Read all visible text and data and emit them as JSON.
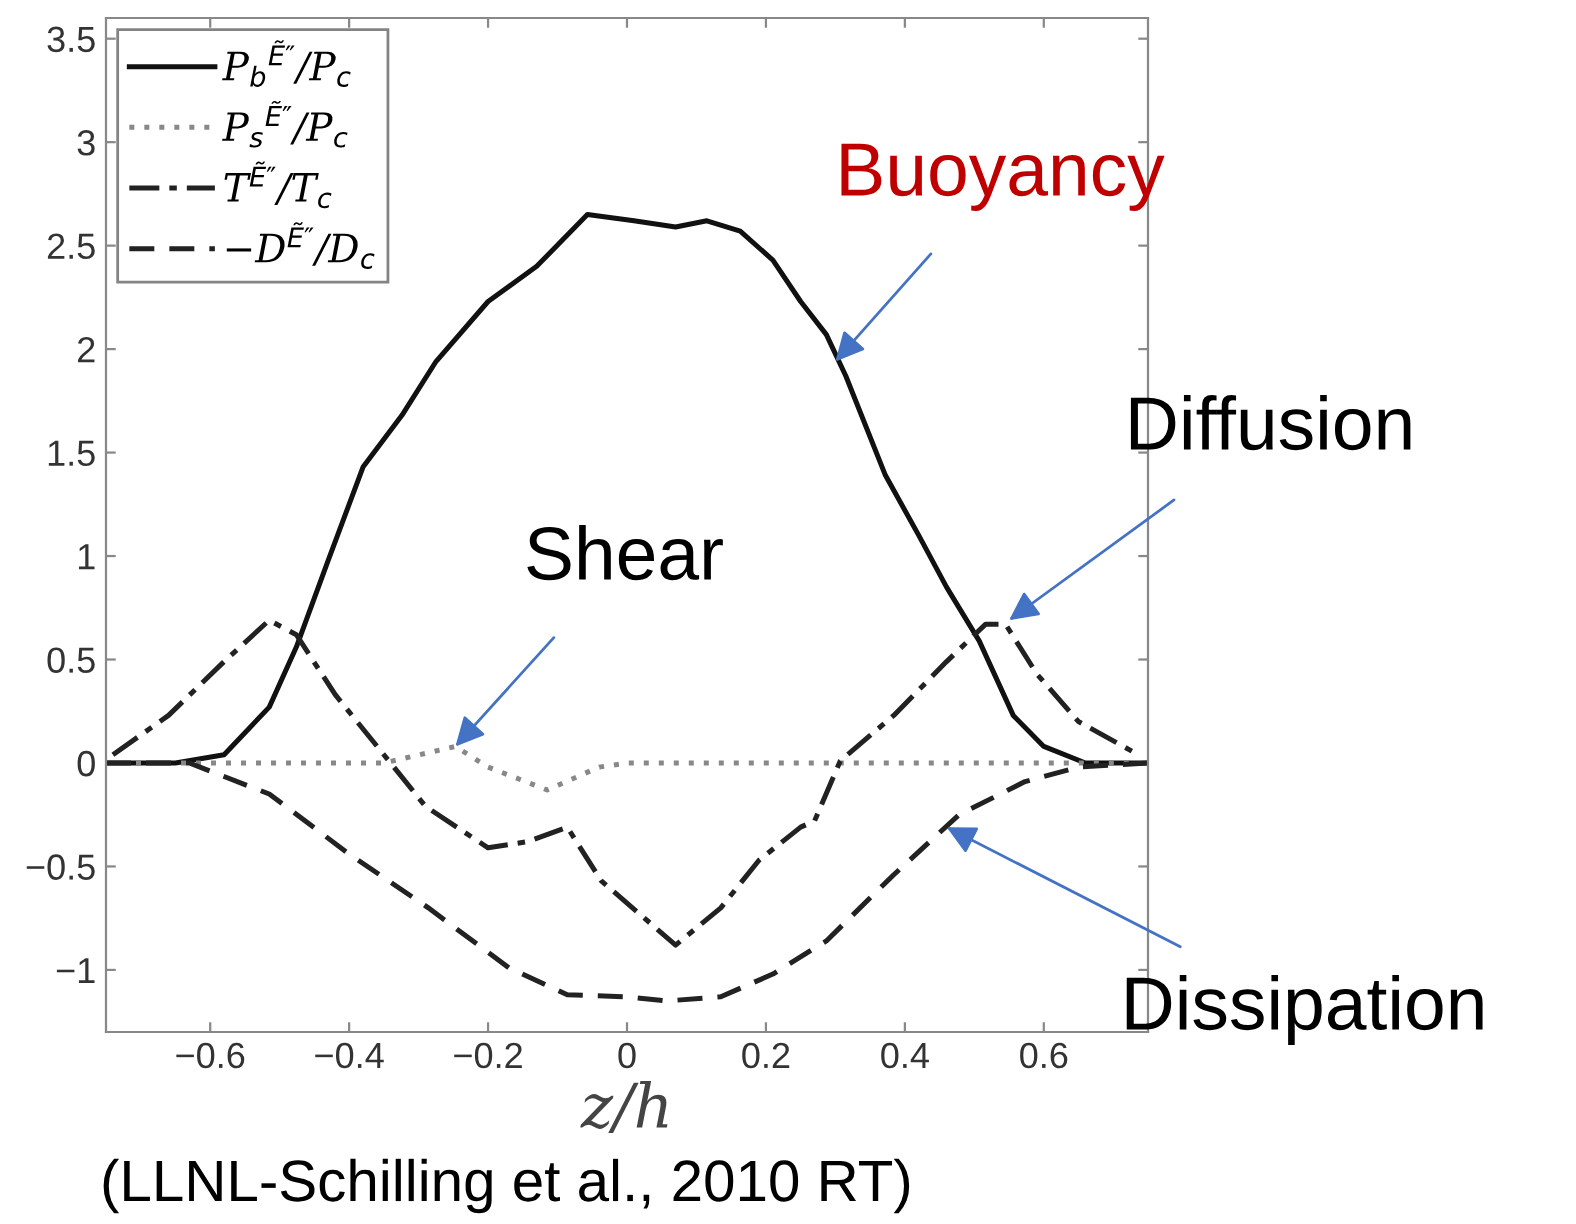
{
  "chart_data": {
    "type": "line",
    "xlabel": "z/h",
    "xlim": [
      -0.75,
      0.75
    ],
    "xticks": [
      {
        "value": -0.6,
        "label": "−0.6"
      },
      {
        "value": -0.4,
        "label": "−0.4"
      },
      {
        "value": -0.2,
        "label": "−0.2"
      },
      0,
      0.2,
      0.4,
      0.6
    ],
    "ylim": [
      -1.3,
      3.6
    ],
    "yticks": [
      {
        "value": -1,
        "label": "−1"
      },
      {
        "value": -0.5,
        "label": "−0.5"
      },
      0,
      0.5,
      1,
      1.5,
      2,
      2.5,
      3,
      3.5
    ],
    "grid": false,
    "legend": "top left",
    "marker": "none",
    "series": [
      {
        "name": "P$_{b}$$^{Ẽ″}$/P$_{c}$",
        "color": "#111111",
        "line_style": "solid",
        "x": [
          -0.75,
          -0.65,
          -0.58,
          -0.515,
          -0.476,
          -0.43,
          -0.38,
          -0.324,
          -0.275,
          -0.2,
          -0.13,
          -0.057,
          0.01,
          0.07,
          0.115,
          0.163,
          0.21,
          0.25,
          0.287,
          0.315,
          0.372,
          0.42,
          0.46,
          0.507,
          0.556,
          0.6,
          0.66,
          0.75
        ],
        "values": [
          0,
          0,
          0.04,
          0.27,
          0.56,
          0.98,
          1.43,
          1.68,
          1.94,
          2.23,
          2.4,
          2.65,
          2.62,
          2.59,
          2.62,
          2.57,
          2.43,
          2.23,
          2.07,
          1.87,
          1.39,
          1.1,
          0.85,
          0.59,
          0.23,
          0.08,
          0,
          0
        ]
      },
      {
        "name": "P$_{s}$$^{Ẽ″}$/P$_{c}$",
        "color": "#888888",
        "line_style": "dotted",
        "x": [
          -0.75,
          -0.35,
          -0.247,
          -0.2,
          -0.115,
          -0.04,
          0.0,
          0.75
        ],
        "values": [
          0,
          0,
          0.08,
          -0.02,
          -0.13,
          -0.02,
          0,
          0
        ]
      },
      {
        "name": "T$^{Ẽ″}$/T$_{c}$",
        "color": "#222222",
        "line_style": "dashdot",
        "x": [
          -0.74,
          -0.66,
          -0.58,
          -0.515,
          -0.476,
          -0.42,
          -0.35,
          -0.29,
          -0.2,
          -0.143,
          -0.086,
          -0.037,
          0.07,
          0.135,
          0.19,
          0.25,
          0.27,
          0.307,
          0.384,
          0.46,
          0.516,
          0.545,
          0.59,
          0.65,
          0.736
        ],
        "values": [
          0.04,
          0.23,
          0.49,
          0.69,
          0.62,
          0.33,
          0.04,
          -0.21,
          -0.41,
          -0.38,
          -0.31,
          -0.57,
          -0.88,
          -0.7,
          -0.47,
          -0.31,
          -0.28,
          0.01,
          0.23,
          0.49,
          0.67,
          0.67,
          0.43,
          0.2,
          0.04
        ]
      },
      {
        "name": "−D$^{Ẽ″}$/D$_{c}$",
        "color": "#222222",
        "line_style": "dashed",
        "x": [
          -0.75,
          -0.63,
          -0.515,
          -0.4,
          -0.286,
          -0.17,
          -0.086,
          0.0,
          0.057,
          0.135,
          0.21,
          0.287,
          0.384,
          0.478,
          0.573,
          0.65,
          0.75
        ],
        "values": [
          0,
          0,
          -0.15,
          -0.44,
          -0.7,
          -0.99,
          -1.12,
          -1.13,
          -1.15,
          -1.13,
          -1.02,
          -0.86,
          -0.54,
          -0.25,
          -0.09,
          -0.02,
          0
        ]
      }
    ],
    "annotations": [
      {
        "text": "Buoyancy",
        "x": 0.3,
        "y": 1.94
      },
      {
        "text": "Shear",
        "x": -0.247,
        "y": 0.08
      },
      {
        "text": "Diffusion",
        "x": 0.55,
        "y": 0.69
      },
      {
        "text": "Dissipation",
        "x": 0.46,
        "y": -0.31
      },
      "(LLNL-Schilling et al., 2010 RT)"
    ]
  }
}
